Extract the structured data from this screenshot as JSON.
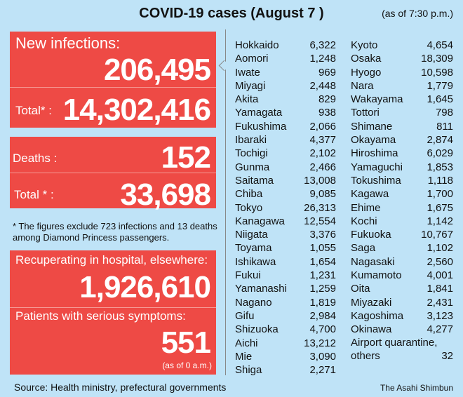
{
  "header": {
    "title": "COVID-19 cases (August 7 )",
    "as_of": "(as of 7:30 p.m.)"
  },
  "infections": {
    "new_label": "New infections:",
    "new_value": "206,495",
    "total_label": "Total* :",
    "total_value": "14,302,416"
  },
  "deaths": {
    "label": "Deaths :",
    "value": "152",
    "total_label": "Total * :",
    "total_value": "33,698"
  },
  "footnote": "* The figures exclude 723 infections and 13 deaths among Diamond Princess passengers.",
  "hospital": {
    "label": "Recuperating in hospital, elsewhere:",
    "value": "1,926,610",
    "serious_label": "Patients with serious symptoms:",
    "serious_value": "551",
    "serious_asof": "(as of 0 a.m.)"
  },
  "prefectures_left": [
    {
      "name": "Hokkaido",
      "value": "6,322"
    },
    {
      "name": "Aomori",
      "value": "1,248"
    },
    {
      "name": "Iwate",
      "value": "969"
    },
    {
      "name": "Miyagi",
      "value": "2,448"
    },
    {
      "name": "Akita",
      "value": "829"
    },
    {
      "name": "Yamagata",
      "value": "938"
    },
    {
      "name": "Fukushima",
      "value": "2,066"
    },
    {
      "name": "Ibaraki",
      "value": "4,377"
    },
    {
      "name": "Tochigi",
      "value": "2,102"
    },
    {
      "name": "Gunma",
      "value": "2,466"
    },
    {
      "name": "Saitama",
      "value": "13,008"
    },
    {
      "name": "Chiba",
      "value": "9,085"
    },
    {
      "name": "Tokyo",
      "value": "26,313"
    },
    {
      "name": "Kanagawa",
      "value": "12,554"
    },
    {
      "name": "Niigata",
      "value": "3,376"
    },
    {
      "name": "Toyama",
      "value": "1,055"
    },
    {
      "name": "Ishikawa",
      "value": "1,654"
    },
    {
      "name": "Fukui",
      "value": "1,231"
    },
    {
      "name": "Yamanashi",
      "value": "1,259"
    },
    {
      "name": "Nagano",
      "value": "1,819"
    },
    {
      "name": "Gifu",
      "value": "2,984"
    },
    {
      "name": "Shizuoka",
      "value": "4,700"
    },
    {
      "name": "Aichi",
      "value": "13,212"
    },
    {
      "name": "Mie",
      "value": "3,090"
    },
    {
      "name": "Shiga",
      "value": "2,271"
    }
  ],
  "prefectures_right": [
    {
      "name": "Kyoto",
      "value": "4,654"
    },
    {
      "name": "Osaka",
      "value": "18,309"
    },
    {
      "name": "Hyogo",
      "value": "10,598"
    },
    {
      "name": "Nara",
      "value": "1,779"
    },
    {
      "name": "Wakayama",
      "value": "1,645"
    },
    {
      "name": "Tottori",
      "value": "798"
    },
    {
      "name": "Shimane",
      "value": "811"
    },
    {
      "name": "Okayama",
      "value": "2,874"
    },
    {
      "name": "Hiroshima",
      "value": "6,029"
    },
    {
      "name": "Yamaguchi",
      "value": "1,853"
    },
    {
      "name": "Tokushima",
      "value": "1,118"
    },
    {
      "name": "Kagawa",
      "value": "1,700"
    },
    {
      "name": "Ehime",
      "value": "1,675"
    },
    {
      "name": "Kochi",
      "value": "1,142"
    },
    {
      "name": "Fukuoka",
      "value": "10,767"
    },
    {
      "name": "Saga",
      "value": "1,102"
    },
    {
      "name": "Nagasaki",
      "value": "2,560"
    },
    {
      "name": "Kumamoto",
      "value": "4,001"
    },
    {
      "name": "Oita",
      "value": "1,841"
    },
    {
      "name": "Miyazaki",
      "value": "2,431"
    },
    {
      "name": "Kagoshima",
      "value": "3,123"
    },
    {
      "name": "Okinawa",
      "value": "4,277"
    }
  ],
  "airport": {
    "label_line1": "Airport quarantine,",
    "label_line2": "others",
    "value": "32"
  },
  "footer": {
    "source": "Source: Health ministry, prefectural governments",
    "brand": "The Asahi Shimbun"
  },
  "colors": {
    "background": "#bfe3f7",
    "panel_red": "#ee4a45"
  }
}
